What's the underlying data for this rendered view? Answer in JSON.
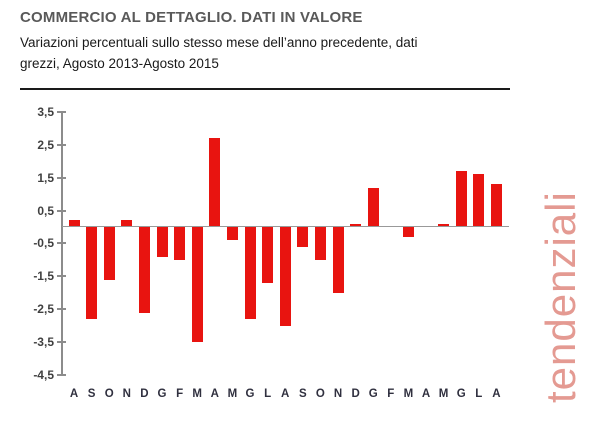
{
  "header": {
    "title": "COMMERCIO AL DETTAGLIO. DATI IN VALORE",
    "subtitle_line1": "Variazioni percentuali sullo stesso mese dell’anno precedente, dati",
    "subtitle_line2": "grezzi, Agosto 2013-Agosto 2015"
  },
  "watermark": {
    "text": "tendenziali"
  },
  "colors": {
    "bar": "#e81410",
    "axis": "#8c8c8c",
    "zero_line": "#999999",
    "title": "#595959",
    "watermark": "#e49a92"
  },
  "chart_data": {
    "type": "bar",
    "title": "COMMERCIO AL DETTAGLIO. DATI IN VALORE",
    "subtitle": "Variazioni percentuali sullo stesso mese dell’anno precedente, dati grezzi, Agosto 2013-Agosto 2015",
    "categories": [
      "A",
      "S",
      "O",
      "N",
      "D",
      "G",
      "F",
      "M",
      "A",
      "M",
      "G",
      "L",
      "A",
      "S",
      "O",
      "N",
      "D",
      "G",
      "F",
      "M",
      "A",
      "M",
      "G",
      "L",
      "A"
    ],
    "values": [
      0.2,
      -2.8,
      -1.6,
      0.2,
      -2.6,
      -0.9,
      -1.0,
      -3.5,
      2.7,
      -0.4,
      -2.8,
      -1.7,
      -3.0,
      -0.6,
      -1.0,
      -2.0,
      0.1,
      1.2,
      0.0,
      -0.3,
      0.0,
      0.1,
      1.7,
      1.6,
      1.3
    ],
    "xlabel": "",
    "ylabel": "",
    "ylim": [
      -4.5,
      3.5
    ],
    "ytick_step": 1.0,
    "ytick_labels": [
      "3,5",
      "2,5",
      "1,5",
      "0,5",
      "-0,5",
      "-1,5",
      "-2,5",
      "-3,5",
      "-4,5"
    ],
    "ytick_values": [
      3.5,
      2.5,
      1.5,
      0.5,
      -0.5,
      -1.5,
      -2.5,
      -3.5,
      -4.5
    ],
    "grid": false,
    "legend": "none",
    "period_start": "Agosto 2013",
    "period_end": "Agosto 2015"
  }
}
